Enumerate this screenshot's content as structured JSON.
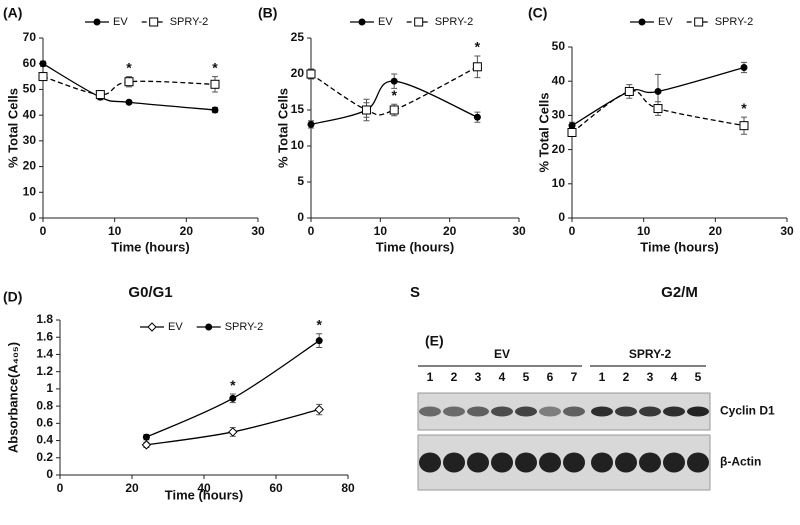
{
  "chart_data": [
    {
      "type": "line",
      "panel": "(A)",
      "title": "G0/G1",
      "x_label": "Time (hours)",
      "y_label": "% Total Cells",
      "x": [
        0,
        8,
        12,
        24
      ],
      "xlim": [
        0,
        30
      ],
      "xticks": [
        0,
        10,
        20,
        30
      ],
      "ylim": [
        0,
        70
      ],
      "yticks": [
        0,
        10,
        20,
        30,
        40,
        50,
        60,
        70
      ],
      "series": [
        {
          "name": "EV",
          "color": "#000000",
          "marker": "circle",
          "dashed": false,
          "values": [
            60,
            47,
            45,
            42
          ],
          "errors": [
            1,
            1,
            0.6,
            1
          ]
        },
        {
          "name": "SPRY-2",
          "color": "#000000",
          "marker": "square-open",
          "dashed": true,
          "values": [
            55,
            48,
            53,
            52
          ],
          "errors": [
            1,
            1.5,
            2,
            3
          ],
          "annotations": [
            {
              "x": 12,
              "text": "*"
            },
            {
              "x": 24,
              "text": "*"
            }
          ]
        }
      ]
    },
    {
      "type": "line",
      "panel": "(B)",
      "title": "S",
      "x_label": "Time (hours)",
      "y_label": "% Total Cells",
      "x": [
        0,
        8,
        12,
        24
      ],
      "xlim": [
        0,
        30
      ],
      "xticks": [
        0,
        10,
        20,
        30
      ],
      "ylim": [
        0,
        25
      ],
      "yticks": [
        0,
        5,
        10,
        15,
        20,
        25
      ],
      "series": [
        {
          "name": "EV",
          "color": "#000000",
          "marker": "circle",
          "dashed": false,
          "values": [
            13,
            15,
            19,
            14
          ],
          "errors": [
            0.5,
            1,
            1,
            0.7
          ]
        },
        {
          "name": "SPRY-2",
          "color": "#000000",
          "marker": "square-open",
          "dashed": true,
          "values": [
            20,
            15,
            15,
            21
          ],
          "errors": [
            0.7,
            1.5,
            0.8,
            1.5
          ],
          "annotations": [
            {
              "x": 12,
              "text": "*"
            },
            {
              "x": 24,
              "text": "*"
            }
          ]
        }
      ]
    },
    {
      "type": "line",
      "panel": "(C)",
      "title": "G2/M",
      "x_label": "Time (hours)",
      "y_label": "% Total Cells",
      "x": [
        0,
        8,
        12,
        24
      ],
      "xlim": [
        0,
        30
      ],
      "xticks": [
        0,
        10,
        20,
        30
      ],
      "ylim": [
        0,
        50
      ],
      "yticks": [
        0,
        10,
        20,
        30,
        40,
        50
      ],
      "series": [
        {
          "name": "EV",
          "color": "#000000",
          "marker": "circle",
          "dashed": false,
          "values": [
            27,
            37,
            37,
            44
          ],
          "errors": [
            1,
            1,
            5,
            1.5
          ]
        },
        {
          "name": "SPRY-2",
          "color": "#000000",
          "marker": "square-open",
          "dashed": true,
          "values": [
            25,
            37,
            32,
            27
          ],
          "errors": [
            1,
            2,
            2,
            2.5
          ],
          "annotations": [
            {
              "x": 24,
              "text": "*"
            }
          ]
        }
      ]
    },
    {
      "type": "line",
      "panel": "(D)",
      "x_label": "Time (hours)",
      "y_label": "Absorbance(A₄₀₅)",
      "x": [
        24,
        48,
        72
      ],
      "xlim": [
        0,
        80
      ],
      "xticks": [
        0,
        20,
        40,
        60,
        80
      ],
      "ylim": [
        0,
        1.8
      ],
      "yticks": [
        0,
        0.2,
        0.4,
        0.6,
        0.8,
        1,
        1.2,
        1.4,
        1.6,
        1.8
      ],
      "series": [
        {
          "name": "EV",
          "color": "#000000",
          "marker": "diamond-open",
          "dashed": false,
          "values": [
            0.35,
            0.5,
            0.76
          ],
          "errors": [
            0.03,
            0.05,
            0.06
          ]
        },
        {
          "name": "SPRY-2",
          "color": "#000000",
          "marker": "circle",
          "dashed": false,
          "values": [
            0.44,
            0.89,
            1.56
          ],
          "errors": [
            0.03,
            0.05,
            0.08
          ],
          "annotations": [
            {
              "x": 48,
              "text": "*"
            },
            {
              "x": 72,
              "text": "*"
            }
          ]
        }
      ]
    }
  ],
  "blot": {
    "panel": "(E)",
    "groups": [
      {
        "label": "EV",
        "lanes": [
          "1",
          "2",
          "3",
          "4",
          "5",
          "6",
          "7"
        ]
      },
      {
        "label": "SPRY-2",
        "lanes": [
          "1",
          "2",
          "3",
          "4",
          "5"
        ]
      }
    ],
    "bands": [
      "Cyclin D1",
      "β-Actin"
    ]
  }
}
